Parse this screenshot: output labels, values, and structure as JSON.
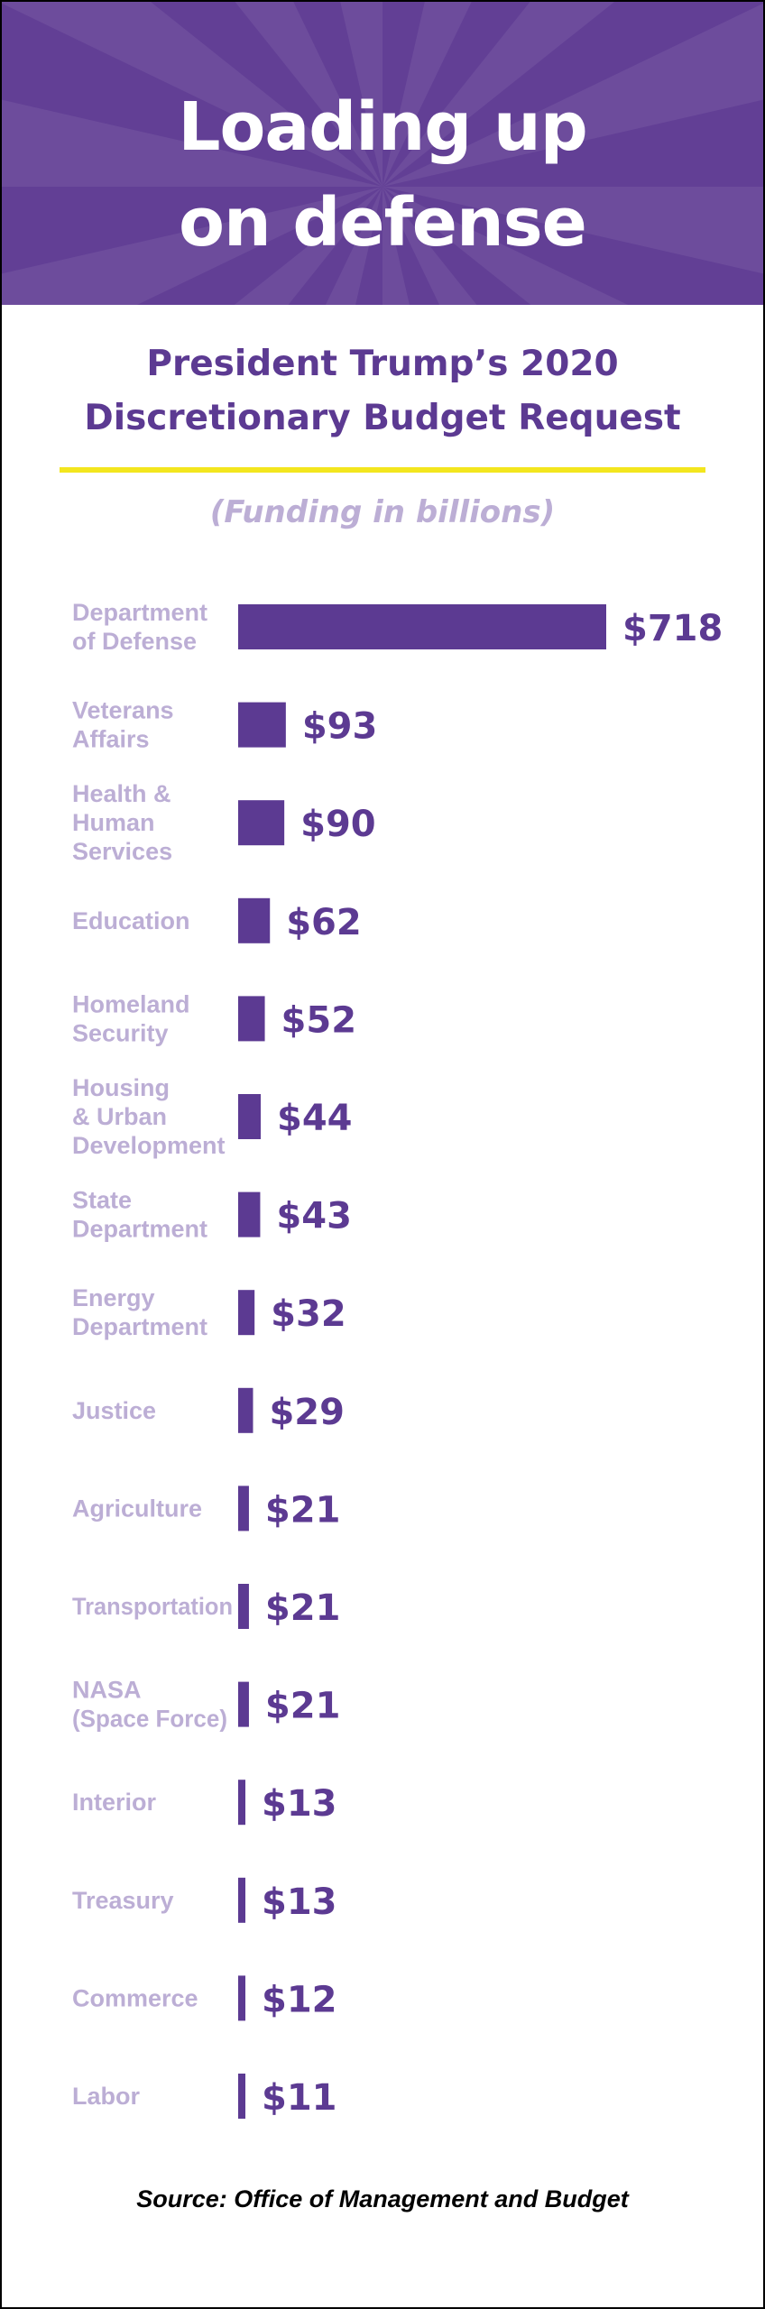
{
  "banner": {
    "title_line1": "Loading up",
    "title_line2": "on defense",
    "color": "#623f95"
  },
  "subtitle": {
    "line1": "President Trump’s 2020",
    "line2": "Discretionary Budget Request"
  },
  "units": "(Funding in billions)",
  "source": "Source: Office of Management and Budget",
  "colors": {
    "bar": "#5c3a92",
    "category_text": "#bcaed5",
    "rule": "#f3e61e"
  },
  "chart_data": {
    "type": "bar",
    "orientation": "horizontal",
    "categories": [
      [
        "Department",
        "of Defense"
      ],
      [
        "Veterans",
        "Affairs"
      ],
      [
        "Health &",
        "Human",
        "Services"
      ],
      [
        "Education"
      ],
      [
        "Homeland",
        "Security"
      ],
      [
        "Housing",
        "& Urban",
        "Development"
      ],
      [
        "State",
        "Department"
      ],
      [
        "Energy",
        "Department"
      ],
      [
        "Justice"
      ],
      [
        "Agriculture"
      ],
      [
        "Transportation"
      ],
      [
        "NASA",
        "(Space Force)"
      ],
      [
        "Interior"
      ],
      [
        "Treasury"
      ],
      [
        "Commerce"
      ],
      [
        "Labor"
      ]
    ],
    "values": [
      718,
      93,
      90,
      62,
      52,
      44,
      43,
      32,
      29,
      21,
      21,
      21,
      13,
      13,
      12,
      11
    ],
    "value_labels": [
      "$718",
      "$93",
      "$90",
      "$62",
      "$52",
      "$44",
      "$43",
      "$32",
      "$29",
      "$21",
      "$21",
      "$21",
      "$13",
      "$13",
      "$12",
      "$11"
    ],
    "title": "President Trump’s 2020 Discretionary Budget Request",
    "xlabel": "",
    "ylabel": "",
    "xlim": [
      0,
      718
    ],
    "grid": false,
    "legend": "none"
  }
}
